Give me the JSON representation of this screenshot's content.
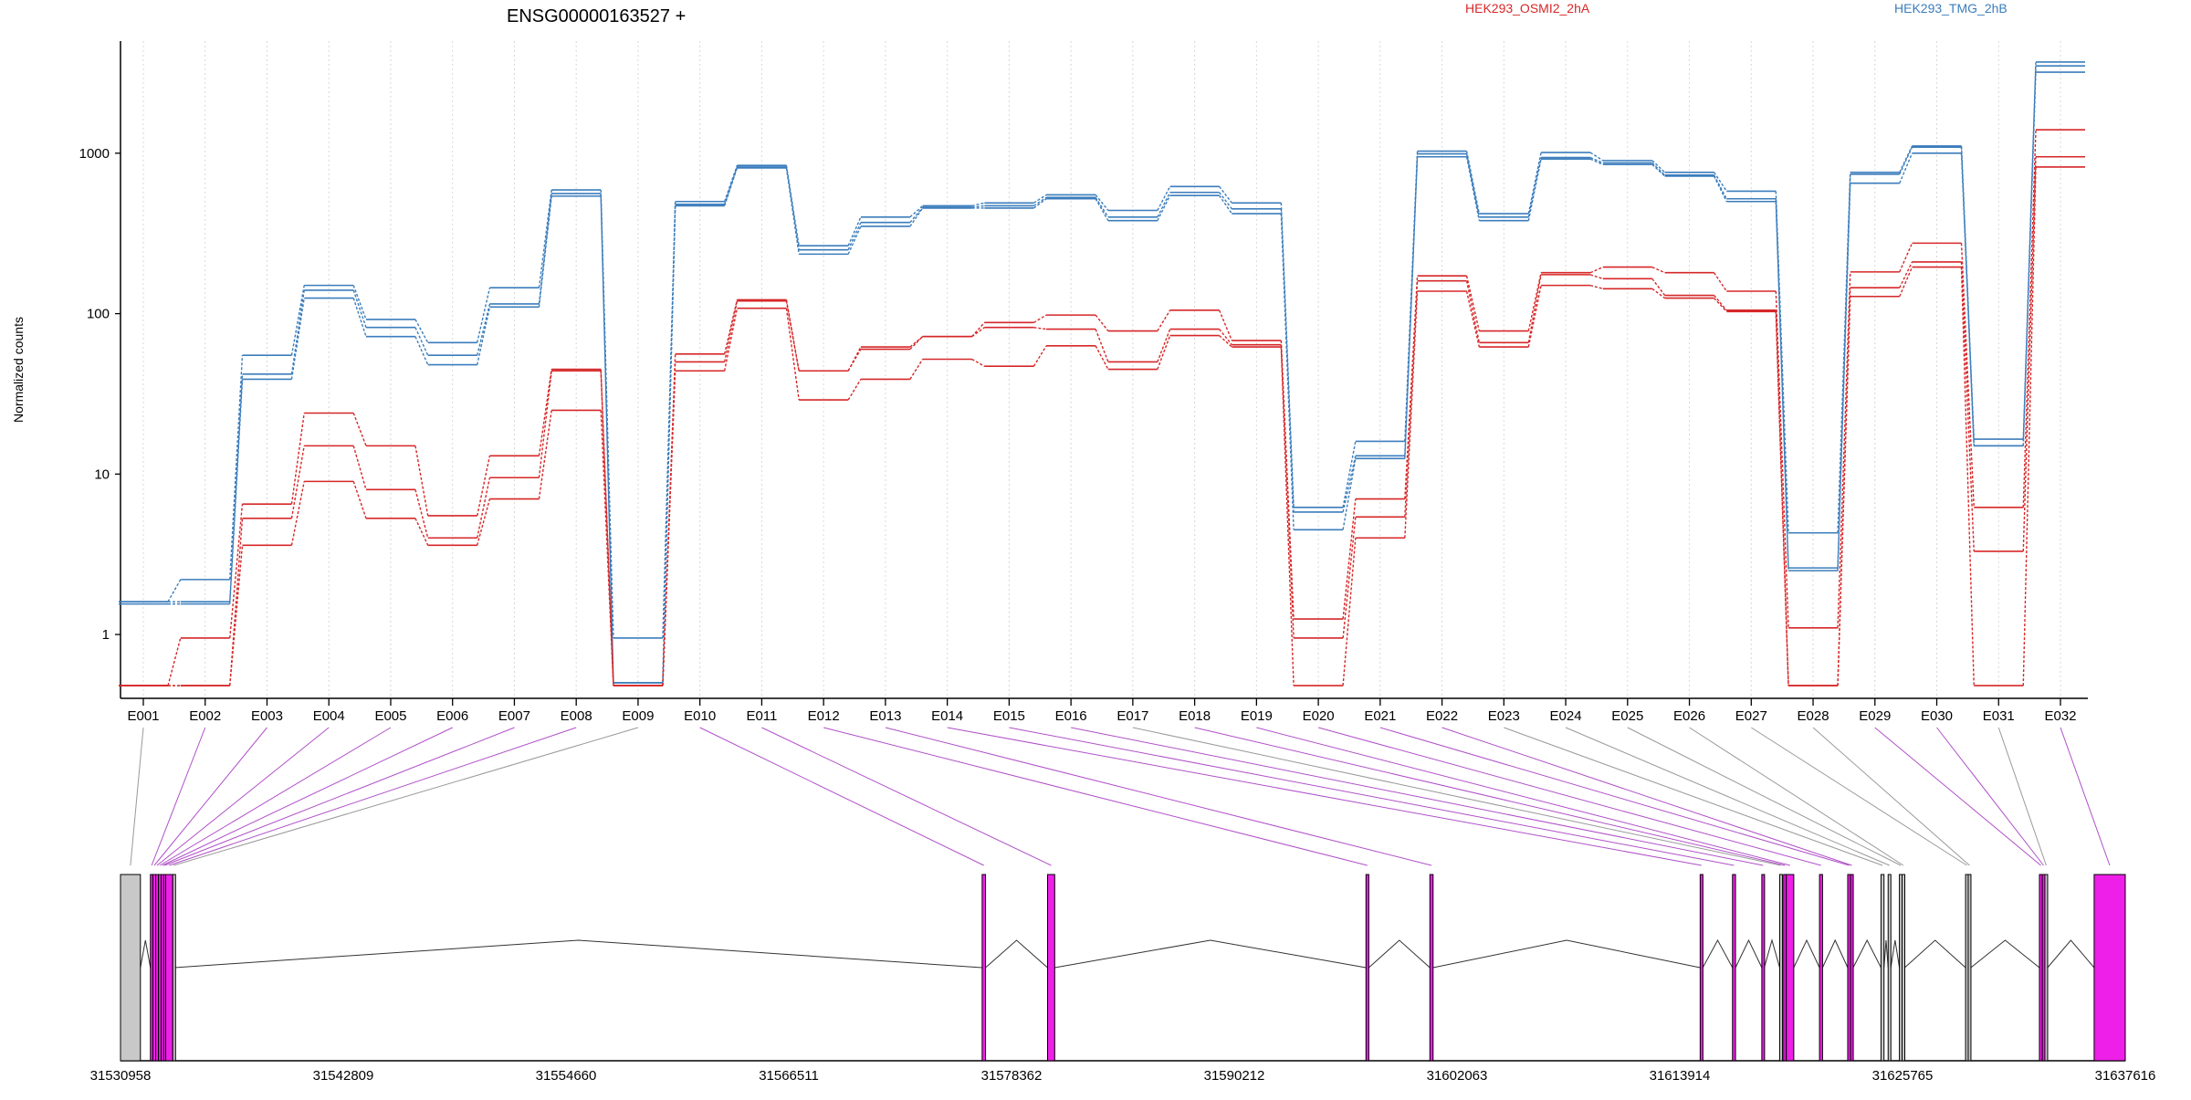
{
  "chart_data": {
    "type": "line",
    "title": "ENSG00000163527 +",
    "ylabel": "Normalized counts",
    "yscale": "log",
    "ylim": [
      0.4,
      5000
    ],
    "yticks": [
      1,
      10,
      100,
      1000
    ],
    "ytick_labels": [
      "1",
      "10",
      "100",
      "1000"
    ],
    "legend_position": "top-right",
    "categories": [
      "E001",
      "E002",
      "E003",
      "E004",
      "E005",
      "E006",
      "E007",
      "E008",
      "E009",
      "E010",
      "E011",
      "E012",
      "E013",
      "E014",
      "E015",
      "E016",
      "E017",
      "E018",
      "E019",
      "E020",
      "E021",
      "E022",
      "E023",
      "E024",
      "E025",
      "E026",
      "E027",
      "E028",
      "E029",
      "E030",
      "E031",
      "E032"
    ],
    "series": [
      {
        "name": "HEK293_TMG_2hB",
        "group": "HEK293_TMG_2hB",
        "color": "#3B7DBC",
        "values": [
          1.6,
          2.2,
          55,
          150,
          92,
          66,
          145,
          590,
          0.95,
          500,
          840,
          265,
          400,
          470,
          490,
          550,
          440,
          620,
          490,
          6.2,
          16,
          1030,
          420,
          1010,
          900,
          760,
          580,
          4.3,
          760,
          1110,
          16.5,
          3700
        ]
      },
      {
        "name": "HEK293_TMG_2hB",
        "group": "HEK293_TMG_2hB",
        "color": "#3B7DBC",
        "values": [
          1.6,
          1.6,
          42,
          140,
          82,
          55,
          115,
          560,
          0.5,
          480,
          820,
          250,
          370,
          460,
          470,
          530,
          400,
          570,
          450,
          5.8,
          13,
          990,
          400,
          940,
          870,
          730,
          520,
          2.6,
          740,
          1090,
          15,
          3500
        ]
      },
      {
        "name": "HEK293_TMG_2hB",
        "group": "HEK293_TMG_2hB",
        "color": "#3B7DBC",
        "values": [
          1.55,
          1.55,
          39,
          125,
          72,
          48,
          110,
          540,
          0.5,
          470,
          810,
          235,
          350,
          455,
          455,
          520,
          380,
          545,
          420,
          4.5,
          12.5,
          950,
          380,
          920,
          850,
          720,
          500,
          2.5,
          650,
          1000,
          15,
          3200
        ]
      },
      {
        "name": "HEK293_OSMI2_2hA",
        "group": "HEK293_OSMI2_2hA",
        "color": "#D62728",
        "values": [
          0.48,
          0.95,
          6.5,
          24,
          15,
          5.5,
          13,
          45,
          0.48,
          56,
          122,
          44,
          62,
          72,
          88,
          98,
          78,
          105,
          68,
          1.25,
          7,
          172,
          78,
          180,
          195,
          180,
          138,
          1.1,
          182,
          275,
          6.2,
          1400
        ]
      },
      {
        "name": "HEK293_OSMI2_2hA",
        "group": "HEK293_OSMI2_2hA",
        "color": "#D62728",
        "values": [
          0.48,
          0.48,
          5.3,
          15,
          8,
          4,
          9.5,
          44,
          0.48,
          50,
          120,
          44,
          60,
          72,
          82,
          80,
          50,
          80,
          64,
          0.95,
          5.4,
          160,
          66,
          175,
          165,
          130,
          105,
          0.48,
          145,
          210,
          3.3,
          950
        ]
      },
      {
        "name": "HEK293_OSMI2_2hA",
        "group": "HEK293_OSMI2_2hA",
        "color": "#D62728",
        "values": [
          0.48,
          0.48,
          3.6,
          9,
          5.3,
          3.6,
          7,
          25,
          0.48,
          44,
          108,
          29,
          39,
          52,
          47,
          63,
          45,
          73,
          62,
          0.48,
          4,
          138,
          62,
          150,
          143,
          125,
          103,
          0.48,
          128,
          195,
          0.48,
          820
        ]
      }
    ],
    "legend": [
      {
        "label": "HEK293_OSMI2_2hA",
        "color": "#D62728"
      },
      {
        "label": "HEK293_TMG_2hB",
        "color": "#3B7DBC"
      }
    ],
    "genomic_axis": {
      "start": 31530958,
      "end": 31637616,
      "tick_labels": [
        "31530958",
        "31542809",
        "31554660",
        "31566511",
        "31578362",
        "31590212",
        "31602063",
        "31613914",
        "31625765",
        "31637616"
      ]
    },
    "exon_colors": {
      "significant": "#EE1FE8",
      "not_significant": "#C8C8C8"
    },
    "exons": [
      {
        "id": "E001",
        "start": 31530958,
        "end": 31532017,
        "significant": false
      },
      {
        "id": "E002",
        "start": 31532550,
        "end": 31532680,
        "significant": true
      },
      {
        "id": "E003",
        "start": 31532680,
        "end": 31532830,
        "significant": true
      },
      {
        "id": "E004",
        "start": 31532830,
        "end": 31532980,
        "significant": true
      },
      {
        "id": "E005",
        "start": 31532980,
        "end": 31533120,
        "significant": true
      },
      {
        "id": "E006",
        "start": 31533120,
        "end": 31533250,
        "significant": true
      },
      {
        "id": "E007",
        "start": 31533250,
        "end": 31533360,
        "significant": true
      },
      {
        "id": "E008",
        "start": 31533360,
        "end": 31533740,
        "significant": true
      },
      {
        "id": "E009",
        "start": 31533740,
        "end": 31533830,
        "significant": false
      },
      {
        "id": "E010",
        "start": 31576800,
        "end": 31576980,
        "significant": true
      },
      {
        "id": "E011",
        "start": 31580280,
        "end": 31580660,
        "significant": true
      },
      {
        "id": "E012",
        "start": 31597220,
        "end": 31597370,
        "significant": true
      },
      {
        "id": "E013",
        "start": 31600620,
        "end": 31600790,
        "significant": true
      },
      {
        "id": "E014",
        "start": 31615000,
        "end": 31615140,
        "significant": true
      },
      {
        "id": "E015",
        "start": 31616720,
        "end": 31616880,
        "significant": true
      },
      {
        "id": "E016",
        "start": 31618280,
        "end": 31618410,
        "significant": true
      },
      {
        "id": "E017",
        "start": 31619230,
        "end": 31619360,
        "significant": false
      },
      {
        "id": "E018",
        "start": 31619440,
        "end": 31619580,
        "significant": true
      },
      {
        "id": "E019",
        "start": 31619580,
        "end": 31619980,
        "significant": true
      },
      {
        "id": "E020",
        "start": 31621350,
        "end": 31621510,
        "significant": true
      },
      {
        "id": "E021",
        "start": 31622850,
        "end": 31623000,
        "significant": true
      },
      {
        "id": "E022",
        "start": 31623000,
        "end": 31623140,
        "significant": true
      },
      {
        "id": "E023",
        "start": 31624620,
        "end": 31624780,
        "significant": false
      },
      {
        "id": "E024",
        "start": 31625000,
        "end": 31625140,
        "significant": false
      },
      {
        "id": "E025",
        "start": 31625600,
        "end": 31625740,
        "significant": false
      },
      {
        "id": "E026",
        "start": 31625740,
        "end": 31625880,
        "significant": false
      },
      {
        "id": "E027",
        "start": 31629120,
        "end": 31629260,
        "significant": false
      },
      {
        "id": "E028",
        "start": 31629260,
        "end": 31629400,
        "significant": false
      },
      {
        "id": "E029",
        "start": 31633050,
        "end": 31633200,
        "significant": true
      },
      {
        "id": "E030",
        "start": 31633200,
        "end": 31633340,
        "significant": true
      },
      {
        "id": "E031",
        "start": 31633340,
        "end": 31633480,
        "significant": false
      },
      {
        "id": "E032",
        "start": 31635960,
        "end": 31637616,
        "significant": true
      }
    ]
  }
}
